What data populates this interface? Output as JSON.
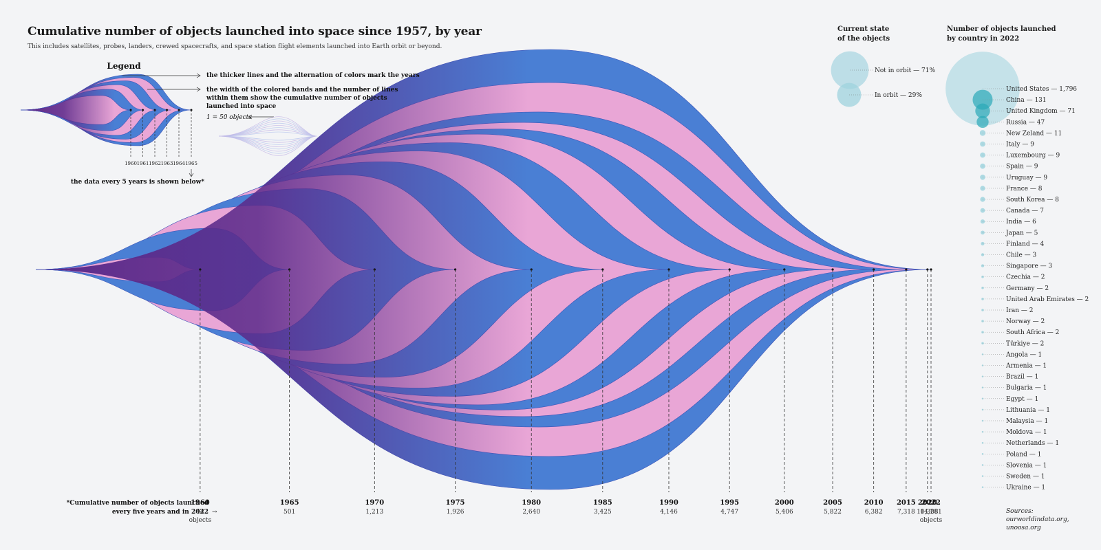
{
  "title": "Cumulative number of objects launched into space since 1957, by year",
  "subtitle": "This includes satellites, probes, landers, crewed spacecrafts, and space station flight elements launched into Earth orbit or beyond.",
  "colors": {
    "blue": "#4a7fd4",
    "pink": "#e9a6d6",
    "purple": "#5b2a8a",
    "bubble": "#9fd3de",
    "bubble_dark": "#2ba9b8"
  },
  "legend": {
    "heading": "Legend",
    "note_years": "the thicker lines and the alternation of colors mark the years",
    "note_width": [
      "the width of the colored bands and the number of lines",
      "within them show the cumulative number of objects",
      "launched into space"
    ],
    "scale": "1 = 50 objects",
    "years": [
      "1960",
      "1961",
      "1962",
      "1963",
      "1964",
      "1965"
    ],
    "footnote": "the data every 5 years is shown below*"
  },
  "axis_note": [
    "*Cumulative number of objects launched",
    "every five years and in 2022"
  ],
  "unit": "objects",
  "chart_data": {
    "type": "area",
    "title": "Cumulative number of objects launched into space since 1957, by year",
    "x": [
      "1960",
      "1965",
      "1970",
      "1975",
      "1980",
      "1985",
      "1990",
      "1995",
      "2000",
      "2005",
      "2010",
      "2015",
      "2020",
      "2022"
    ],
    "values": [
      44,
      501,
      1213,
      1926,
      2640,
      3425,
      4146,
      4747,
      5406,
      5822,
      6382,
      7318,
      10308,
      14281
    ],
    "value_labels": [
      "44",
      "501",
      "1,213",
      "1,926",
      "2,640",
      "3,425",
      "4,146",
      "4,747",
      "5,406",
      "5,822",
      "6,382",
      "7,318",
      "10,308",
      "14,281"
    ]
  },
  "orbit": {
    "heading": [
      "Current state",
      "of the objects"
    ],
    "items": [
      {
        "label": "Not in orbit — 71%",
        "value": 71
      },
      {
        "label": "In orbit — 29%",
        "value": 29
      }
    ]
  },
  "countries": {
    "heading": [
      "Number of objects launched",
      "by country in 2022"
    ],
    "items": [
      {
        "name": "United States",
        "label": "United States — 1,796",
        "value": 1796
      },
      {
        "name": "China",
        "label": "China — 131",
        "value": 131
      },
      {
        "name": "United Kingdom",
        "label": "United Kingdom — 71",
        "value": 71
      },
      {
        "name": "Russia",
        "label": "Russia — 47",
        "value": 47
      },
      {
        "name": "New Zeland",
        "label": "New Zeland — 11",
        "value": 11
      },
      {
        "name": "Italy",
        "label": "Italy — 9",
        "value": 9
      },
      {
        "name": "Luxembourg",
        "label": "Luxembourg — 9",
        "value": 9
      },
      {
        "name": "Spain",
        "label": "Spain — 9",
        "value": 9
      },
      {
        "name": "Uruguay",
        "label": "Uruguay — 9",
        "value": 9
      },
      {
        "name": "France",
        "label": "France — 8",
        "value": 8
      },
      {
        "name": "South Korea",
        "label": "South Korea — 8",
        "value": 8
      },
      {
        "name": "Canada",
        "label": "Canada — 7",
        "value": 7
      },
      {
        "name": "India",
        "label": "India — 6",
        "value": 6
      },
      {
        "name": "Japan",
        "label": "Japan — 5",
        "value": 5
      },
      {
        "name": "Finland",
        "label": "Finland — 4",
        "value": 4
      },
      {
        "name": "Chile",
        "label": "Chile — 3",
        "value": 3
      },
      {
        "name": "Singapore",
        "label": "Singapore — 3",
        "value": 3
      },
      {
        "name": "Czechia",
        "label": "Czechia — 2",
        "value": 2
      },
      {
        "name": "Germany",
        "label": "Germany — 2",
        "value": 2
      },
      {
        "name": "United Arab Emirates",
        "label": "United Arab Emirates — 2",
        "value": 2
      },
      {
        "name": "Iran",
        "label": "Iran — 2",
        "value": 2
      },
      {
        "name": "Norway",
        "label": "Norway — 2",
        "value": 2
      },
      {
        "name": "South Africa",
        "label": "South Africa — 2",
        "value": 2
      },
      {
        "name": "Türkiye",
        "label": "Türkiye — 2",
        "value": 2
      },
      {
        "name": "Angola",
        "label": "Angola — 1",
        "value": 1
      },
      {
        "name": "Armenia",
        "label": "Armenia — 1",
        "value": 1
      },
      {
        "name": "Brazil",
        "label": "Brazil — 1",
        "value": 1
      },
      {
        "name": "Bulgaria",
        "label": "Bulgaria — 1",
        "value": 1
      },
      {
        "name": "Egypt",
        "label": "Egypt — 1",
        "value": 1
      },
      {
        "name": "Lithuania",
        "label": "Lithuania — 1",
        "value": 1
      },
      {
        "name": "Malaysia",
        "label": "Malaysia — 1",
        "value": 1
      },
      {
        "name": "Moldova",
        "label": "Moldova — 1",
        "value": 1
      },
      {
        "name": "Netherlands",
        "label": "Netherlands — 1",
        "value": 1
      },
      {
        "name": "Poland",
        "label": "Poland — 1",
        "value": 1
      },
      {
        "name": "Slovenia",
        "label": "Slovenia — 1",
        "value": 1
      },
      {
        "name": "Sweden",
        "label": "Sweden — 1",
        "value": 1
      },
      {
        "name": "Ukraine",
        "label": "Ukraine — 1",
        "value": 1
      }
    ]
  },
  "sources": [
    "Sources:",
    "ourworldindata.org,",
    "unoosa.org"
  ]
}
